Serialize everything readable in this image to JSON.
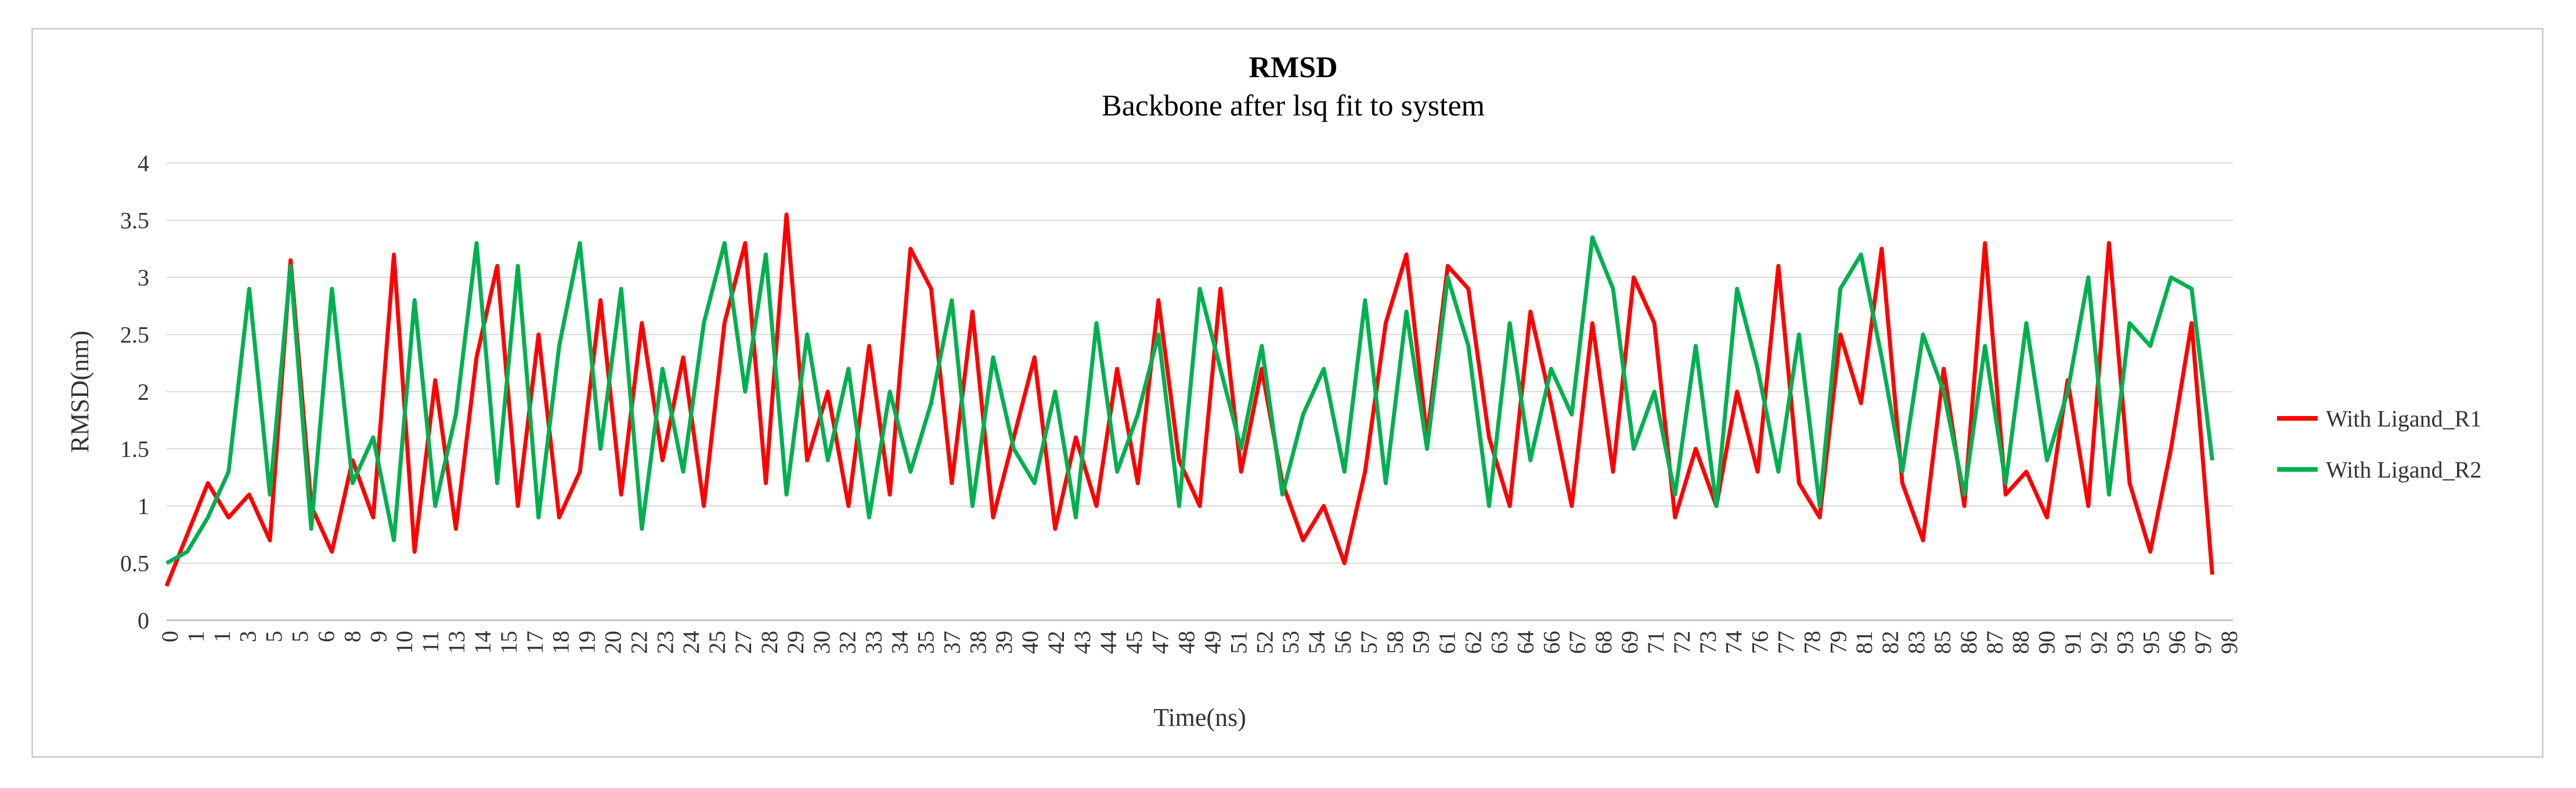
{
  "chart_data": {
    "type": "line",
    "title": "RMSD",
    "subtitle": "Backbone after lsq fit to system",
    "xlabel": "Time(ns)",
    "ylabel": "RMSD(nm)",
    "ylim": [
      0,
      4
    ],
    "yticks": [
      "0",
      "0.5",
      "1",
      "1.5",
      "2",
      "2.5",
      "3",
      "3.5",
      "4"
    ],
    "xlim": [
      0,
      100
    ],
    "xticks": [
      "0",
      "1",
      "1",
      "3",
      "5",
      "5",
      "6",
      "8",
      "9",
      "10",
      "11",
      "13",
      "14",
      "15",
      "17",
      "18",
      "19",
      "20",
      "22",
      "23",
      "24",
      "25",
      "27",
      "28",
      "29",
      "30",
      "32",
      "33",
      "34",
      "35",
      "37",
      "38",
      "39",
      "40",
      "42",
      "43",
      "44",
      "45",
      "47",
      "48",
      "49",
      "51",
      "52",
      "53",
      "54",
      "56",
      "57",
      "58",
      "59",
      "61",
      "62",
      "63",
      "64",
      "66",
      "67",
      "68",
      "69",
      "71",
      "72",
      "73",
      "74",
      "76",
      "77",
      "78",
      "79",
      "81",
      "82",
      "83",
      "85",
      "86",
      "87",
      "88",
      "90",
      "91",
      "92",
      "93",
      "95",
      "96",
      "97",
      "98"
    ],
    "grid": true,
    "legend_position": "right",
    "series": [
      {
        "name": "With Ligand_R1",
        "color": "#ff0000",
        "x": [
          0,
          1,
          2,
          3,
          4,
          5,
          6,
          7,
          8,
          9,
          10,
          11,
          12,
          13,
          14,
          15,
          16,
          17,
          18,
          19,
          20,
          21,
          22,
          23,
          24,
          25,
          26,
          27,
          28,
          29,
          30,
          31,
          32,
          33,
          34,
          35,
          36,
          37,
          38,
          39,
          40,
          41,
          42,
          43,
          44,
          45,
          46,
          47,
          48,
          49,
          50,
          51,
          52,
          53,
          54,
          55,
          56,
          57,
          58,
          59,
          60,
          61,
          62,
          63,
          64,
          65,
          66,
          67,
          68,
          69,
          70,
          71,
          72,
          73,
          74,
          75,
          76,
          77,
          78,
          79,
          80,
          81,
          82,
          83,
          84,
          85,
          86,
          87,
          88,
          89,
          90,
          91,
          92,
          93,
          94,
          95,
          96,
          97,
          98,
          99
        ],
        "values": [
          0.3,
          0.75,
          1.2,
          0.9,
          1.1,
          0.7,
          3.15,
          1.0,
          0.6,
          1.4,
          0.9,
          3.2,
          0.6,
          2.1,
          0.8,
          2.3,
          3.1,
          1.0,
          2.5,
          0.9,
          1.3,
          2.8,
          1.1,
          2.6,
          1.4,
          2.3,
          1.0,
          2.6,
          3.3,
          1.2,
          3.55,
          1.4,
          2.0,
          1.0,
          2.4,
          1.1,
          3.25,
          2.9,
          1.2,
          2.7,
          0.9,
          1.6,
          2.3,
          0.8,
          1.6,
          1.0,
          2.2,
          1.2,
          2.8,
          1.4,
          1.0,
          2.9,
          1.3,
          2.2,
          1.2,
          0.7,
          1.0,
          0.5,
          1.3,
          2.6,
          3.2,
          1.6,
          3.1,
          2.9,
          1.6,
          1.0,
          2.7,
          1.9,
          1.0,
          2.6,
          1.3,
          3.0,
          2.6,
          0.9,
          1.5,
          1.0,
          2.0,
          1.3,
          3.1,
          1.2,
          0.9,
          2.5,
          1.9,
          3.25,
          1.2,
          0.7,
          2.2,
          1.0,
          3.3,
          1.1,
          1.3,
          0.9,
          2.1,
          1.0,
          3.3,
          1.2,
          0.6,
          1.5,
          2.6,
          0.4
        ]
      },
      {
        "name": "With Ligand_R2",
        "color": "#00b050",
        "x": [
          0,
          1,
          2,
          3,
          4,
          5,
          6,
          7,
          8,
          9,
          10,
          11,
          12,
          13,
          14,
          15,
          16,
          17,
          18,
          19,
          20,
          21,
          22,
          23,
          24,
          25,
          26,
          27,
          28,
          29,
          30,
          31,
          32,
          33,
          34,
          35,
          36,
          37,
          38,
          39,
          40,
          41,
          42,
          43,
          44,
          45,
          46,
          47,
          48,
          49,
          50,
          51,
          52,
          53,
          54,
          55,
          56,
          57,
          58,
          59,
          60,
          61,
          62,
          63,
          64,
          65,
          66,
          67,
          68,
          69,
          70,
          71,
          72,
          73,
          74,
          75,
          76,
          77,
          78,
          79,
          80,
          81,
          82,
          83,
          84,
          85,
          86,
          87,
          88,
          89,
          90,
          91,
          92,
          93,
          94,
          95,
          96,
          97,
          98,
          99
        ],
        "values": [
          0.5,
          0.6,
          0.9,
          1.3,
          2.9,
          1.1,
          3.1,
          0.8,
          2.9,
          1.2,
          1.6,
          0.7,
          2.8,
          1.0,
          1.8,
          3.3,
          1.2,
          3.1,
          0.9,
          2.4,
          3.3,
          1.5,
          2.9,
          0.8,
          2.2,
          1.3,
          2.6,
          3.3,
          2.0,
          3.2,
          1.1,
          2.5,
          1.4,
          2.2,
          0.9,
          2.0,
          1.3,
          1.9,
          2.8,
          1.0,
          2.3,
          1.5,
          1.2,
          2.0,
          0.9,
          2.6,
          1.3,
          1.8,
          2.5,
          1.0,
          2.9,
          2.2,
          1.5,
          2.4,
          1.1,
          1.8,
          2.2,
          1.3,
          2.8,
          1.2,
          2.7,
          1.5,
          3.0,
          2.4,
          1.0,
          2.6,
          1.4,
          2.2,
          1.8,
          3.35,
          2.9,
          1.5,
          2.0,
          1.1,
          2.4,
          1.0,
          2.9,
          2.2,
          1.3,
          2.5,
          1.0,
          2.9,
          3.2,
          2.3,
          1.3,
          2.5,
          2.0,
          1.1,
          2.4,
          1.2,
          2.6,
          1.4,
          2.0,
          3.0,
          1.1,
          2.6,
          2.4,
          3.0,
          2.9,
          1.4
        ]
      }
    ]
  }
}
